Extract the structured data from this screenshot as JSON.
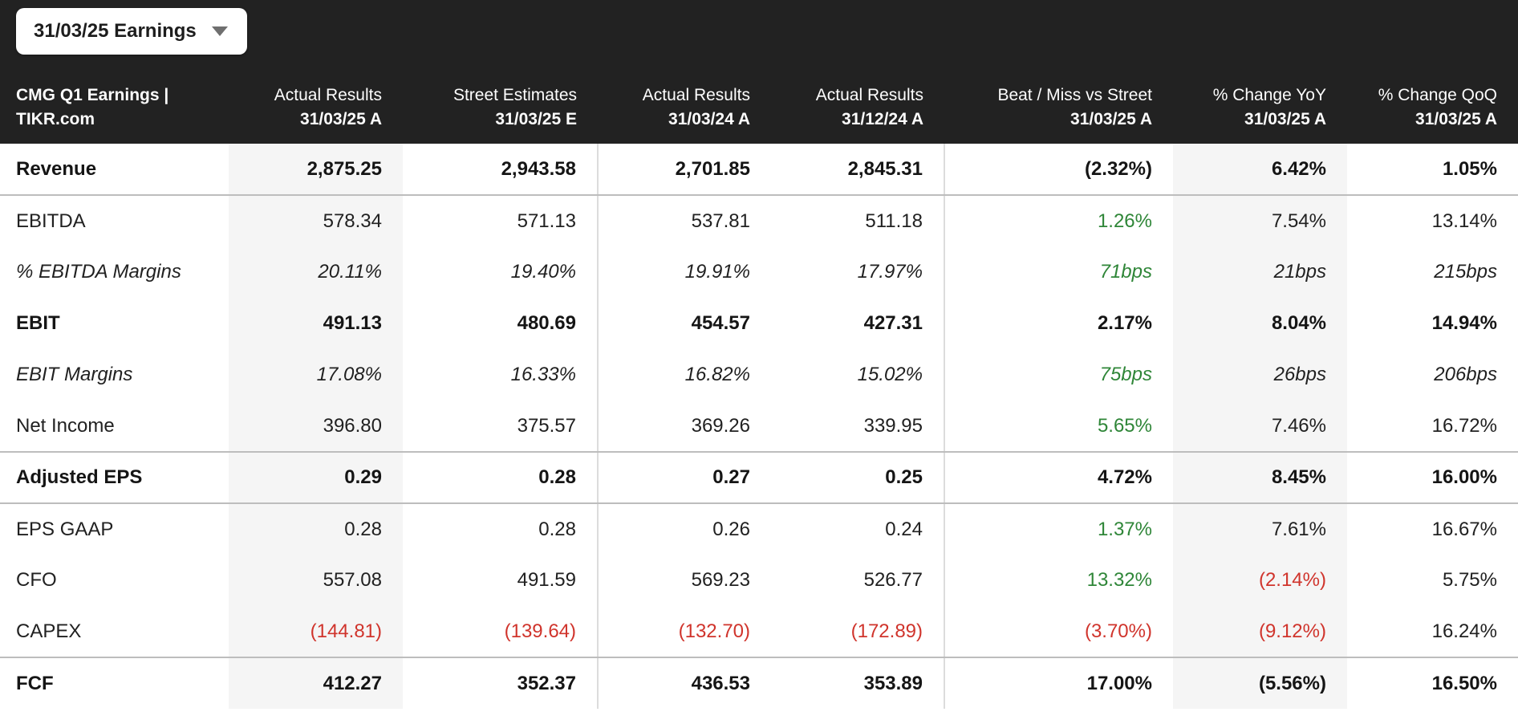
{
  "dropdown": {
    "label": "31/03/25 Earnings",
    "icon": "chevron-down-icon"
  },
  "colors": {
    "accent_green": "#2f8638",
    "accent_red": "#d0342c",
    "header_bg": "#222222",
    "highlight_column_bg": "#f5f5f5",
    "divider": "#dcdcdc",
    "group_border": "#bdbdbd"
  },
  "table": {
    "title_line1": "CMG Q1 Earnings |",
    "title_line2": "TIKR.com",
    "columns": [
      {
        "line1": "Actual Results",
        "line2": "31/03/25 A",
        "highlight": true,
        "divider_right": false
      },
      {
        "line1": "Street Estimates",
        "line2": "31/03/25 E",
        "highlight": false,
        "divider_right": true
      },
      {
        "line1": "Actual Results",
        "line2": "31/03/24 A",
        "highlight": false,
        "divider_right": false
      },
      {
        "line1": "Actual Results",
        "line2": "31/12/24 A",
        "highlight": false,
        "divider_right": true
      },
      {
        "line1": "Beat / Miss vs Street",
        "line2": "31/03/25 A",
        "highlight": false,
        "divider_right": false
      },
      {
        "line1": "% Change YoY",
        "line2": "31/03/25 A",
        "highlight": true,
        "divider_right": false
      },
      {
        "line1": "% Change QoQ",
        "line2": "31/03/25 A",
        "highlight": false,
        "divider_right": false
      }
    ],
    "rows": [
      {
        "label": "Revenue",
        "style": "bold",
        "group_end": true,
        "values": [
          {
            "text": "2,875.25"
          },
          {
            "text": "2,943.58"
          },
          {
            "text": "2,701.85"
          },
          {
            "text": "2,845.31"
          },
          {
            "text": "(2.32%)",
            "color": "red"
          },
          {
            "text": "6.42%"
          },
          {
            "text": "1.05%"
          }
        ]
      },
      {
        "label": "EBITDA",
        "style": "normal",
        "group_end": false,
        "values": [
          {
            "text": "578.34"
          },
          {
            "text": "571.13"
          },
          {
            "text": "537.81"
          },
          {
            "text": "511.18"
          },
          {
            "text": "1.26%",
            "color": "green"
          },
          {
            "text": "7.54%"
          },
          {
            "text": "13.14%"
          }
        ]
      },
      {
        "label": "% EBITDA Margins",
        "style": "italic",
        "group_end": false,
        "values": [
          {
            "text": "20.11%"
          },
          {
            "text": "19.40%"
          },
          {
            "text": "19.91%"
          },
          {
            "text": "17.97%"
          },
          {
            "text": "71bps",
            "color": "green"
          },
          {
            "text": "21bps"
          },
          {
            "text": "215bps"
          }
        ]
      },
      {
        "label": "EBIT",
        "style": "bold",
        "group_end": false,
        "values": [
          {
            "text": "491.13"
          },
          {
            "text": "480.69"
          },
          {
            "text": "454.57"
          },
          {
            "text": "427.31"
          },
          {
            "text": "2.17%",
            "color": "green"
          },
          {
            "text": "8.04%"
          },
          {
            "text": "14.94%"
          }
        ]
      },
      {
        "label": "EBIT Margins",
        "style": "italic",
        "group_end": false,
        "values": [
          {
            "text": "17.08%"
          },
          {
            "text": "16.33%"
          },
          {
            "text": "16.82%"
          },
          {
            "text": "15.02%"
          },
          {
            "text": "75bps",
            "color": "green"
          },
          {
            "text": "26bps"
          },
          {
            "text": "206bps"
          }
        ]
      },
      {
        "label": "Net Income",
        "style": "normal",
        "group_end": true,
        "values": [
          {
            "text": "396.80"
          },
          {
            "text": "375.57"
          },
          {
            "text": "369.26"
          },
          {
            "text": "339.95"
          },
          {
            "text": "5.65%",
            "color": "green"
          },
          {
            "text": "7.46%"
          },
          {
            "text": "16.72%"
          }
        ]
      },
      {
        "label": "Adjusted EPS",
        "style": "bold",
        "group_end": true,
        "values": [
          {
            "text": "0.29"
          },
          {
            "text": "0.28"
          },
          {
            "text": "0.27"
          },
          {
            "text": "0.25"
          },
          {
            "text": "4.72%",
            "color": "green"
          },
          {
            "text": "8.45%"
          },
          {
            "text": "16.00%"
          }
        ]
      },
      {
        "label": "EPS GAAP",
        "style": "normal",
        "group_end": false,
        "values": [
          {
            "text": "0.28"
          },
          {
            "text": "0.28"
          },
          {
            "text": "0.26"
          },
          {
            "text": "0.24"
          },
          {
            "text": "1.37%",
            "color": "green"
          },
          {
            "text": "7.61%"
          },
          {
            "text": "16.67%"
          }
        ]
      },
      {
        "label": "CFO",
        "style": "normal",
        "group_end": false,
        "values": [
          {
            "text": "557.08"
          },
          {
            "text": "491.59"
          },
          {
            "text": "569.23"
          },
          {
            "text": "526.77"
          },
          {
            "text": "13.32%",
            "color": "green"
          },
          {
            "text": "(2.14%)",
            "color": "red"
          },
          {
            "text": "5.75%"
          }
        ]
      },
      {
        "label": "CAPEX",
        "style": "normal",
        "group_end": true,
        "values": [
          {
            "text": "(144.81)",
            "color": "red"
          },
          {
            "text": "(139.64)",
            "color": "red"
          },
          {
            "text": "(132.70)",
            "color": "red"
          },
          {
            "text": "(172.89)",
            "color": "red"
          },
          {
            "text": "(3.70%)",
            "color": "red"
          },
          {
            "text": "(9.12%)",
            "color": "red"
          },
          {
            "text": "16.24%"
          }
        ]
      },
      {
        "label": "FCF",
        "style": "bold",
        "group_end": false,
        "values": [
          {
            "text": "412.27"
          },
          {
            "text": "352.37"
          },
          {
            "text": "436.53"
          },
          {
            "text": "353.89"
          },
          {
            "text": "17.00%",
            "color": "green"
          },
          {
            "text": "(5.56%)",
            "color": "red"
          },
          {
            "text": "16.50%"
          }
        ]
      }
    ]
  }
}
